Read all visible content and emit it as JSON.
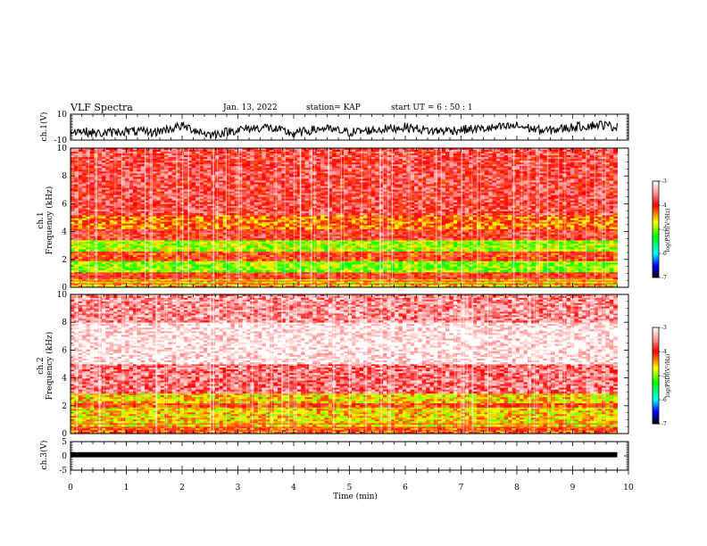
{
  "header": {
    "title": "VLF Spectra",
    "date": "Jan. 13, 2022",
    "station": "station= KAP",
    "start": "start  UT =   6 : 50 : 1"
  },
  "chart_data": [
    {
      "type": "line",
      "name": "ch1-waveform",
      "ylabel": "ch.1(V)",
      "ylim": [
        -10,
        10
      ],
      "yticks": [
        "10",
        "-10"
      ],
      "xlim": [
        0,
        10
      ],
      "x": [
        0,
        0.5,
        1,
        1.5,
        2,
        2.5,
        3,
        3.5,
        4,
        4.5,
        5,
        5.5,
        6,
        6.5,
        7,
        7.5,
        8,
        8.5,
        9,
        9.5,
        9.8
      ],
      "values": [
        -2,
        -5,
        -3,
        -4,
        1,
        -6,
        -2,
        0,
        -5,
        -1,
        -4,
        -2,
        0,
        -3,
        -2,
        -1,
        1,
        -3,
        0,
        2,
        0
      ]
    },
    {
      "type": "heatmap",
      "name": "ch1-spectrogram",
      "ylabel_line1": "ch.1",
      "ylabel_line2": "Frequency (kHz)",
      "ylim": [
        0,
        10
      ],
      "yticks": [
        "0",
        "2",
        "4",
        "6",
        "8",
        "10"
      ],
      "xlim": [
        0,
        9.8
      ],
      "colorbar": {
        "label": "log(PSD)(V²/Hz)",
        "ticks": [
          "-3",
          "-4",
          "-5",
          "-6",
          "-7"
        ]
      },
      "bands": [
        {
          "fmin": 0.0,
          "fmax": 0.6,
          "level": -4.6
        },
        {
          "fmin": 0.6,
          "fmax": 1.1,
          "level": -4.0
        },
        {
          "fmin": 1.1,
          "fmax": 1.9,
          "level": -5.0
        },
        {
          "fmin": 1.9,
          "fmax": 2.6,
          "level": -4.1
        },
        {
          "fmin": 2.6,
          "fmax": 3.4,
          "level": -4.9
        },
        {
          "fmin": 3.4,
          "fmax": 4.2,
          "level": -3.9
        },
        {
          "fmin": 4.2,
          "fmax": 5.2,
          "level": -4.3
        },
        {
          "fmin": 5.2,
          "fmax": 10.0,
          "level": -3.8
        }
      ]
    },
    {
      "type": "heatmap",
      "name": "ch2-spectrogram",
      "ylabel_line1": "ch.2",
      "ylabel_line2": "Frequency (kHz)",
      "ylim": [
        0,
        10
      ],
      "yticks": [
        "0",
        "2",
        "4",
        "6",
        "8",
        "10"
      ],
      "xlim": [
        0,
        9.8
      ],
      "colorbar": {
        "label": "log(PSD)(V²/Hz)",
        "ticks": [
          "-3",
          "-4",
          "-5",
          "-6",
          "-7"
        ]
      },
      "bands": [
        {
          "fmin": 0.0,
          "fmax": 0.5,
          "level": -4.2
        },
        {
          "fmin": 0.5,
          "fmax": 1.9,
          "level": -4.6
        },
        {
          "fmin": 1.9,
          "fmax": 2.2,
          "level": -4.1
        },
        {
          "fmin": 2.2,
          "fmax": 2.9,
          "level": -4.6
        },
        {
          "fmin": 2.9,
          "fmax": 5.0,
          "level": -3.6
        },
        {
          "fmin": 5.0,
          "fmax": 8.0,
          "level": -3.1
        },
        {
          "fmin": 8.0,
          "fmax": 10.0,
          "level": -3.5
        }
      ]
    },
    {
      "type": "line",
      "name": "ch3-waveform",
      "ylabel": "ch.3(V)",
      "ylim": [
        -5,
        5
      ],
      "yticks": [
        "5",
        "0",
        "-5"
      ],
      "xlim": [
        0,
        9.8
      ],
      "band": [
        -0.3,
        0.3
      ],
      "xlabel": "Time (min)",
      "xticks": [
        "0",
        "1",
        "2",
        "3",
        "4",
        "5",
        "6",
        "7",
        "8",
        "9",
        "10"
      ]
    }
  ],
  "colors": {
    "red": "#ff0000",
    "yellow": "#ffff00",
    "green": "#00ff00",
    "cyan": "#00ffff",
    "blue": "#0000ff",
    "black": "#000000"
  }
}
